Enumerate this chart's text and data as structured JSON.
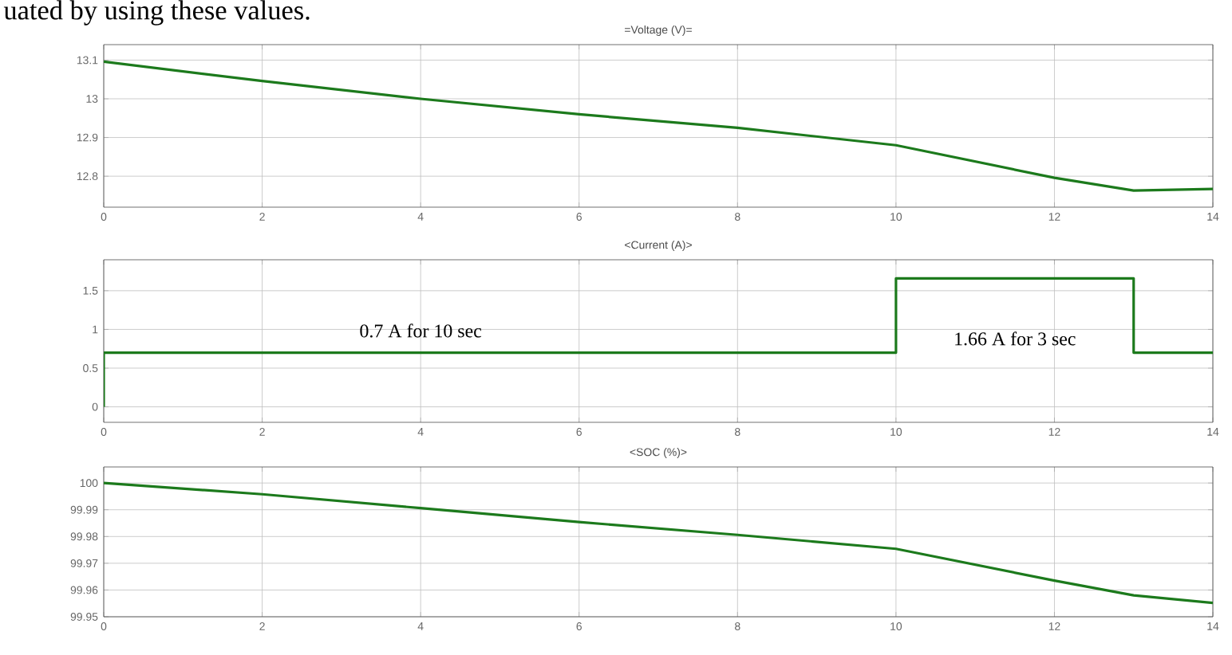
{
  "chart_data": [
    {
      "type": "line",
      "title": "=Voltage (V)=",
      "x": [
        0,
        2,
        4,
        6,
        8,
        10,
        12,
        13,
        14
      ],
      "series": [
        {
          "color": "#1c7a1c",
          "values": [
            13.096,
            13.046,
            13.0,
            12.96,
            12.925,
            12.88,
            12.796,
            12.763,
            12.767
          ]
        }
      ],
      "xlim": [
        0,
        14
      ],
      "xticks": [
        0,
        2,
        4,
        6,
        8,
        10,
        12,
        14
      ],
      "ylim": [
        12.72,
        13.14
      ],
      "yticks": [
        12.8,
        12.9,
        13,
        13.1
      ],
      "grid": true,
      "annotations": [
        "uated by using these values."
      ]
    },
    {
      "type": "line",
      "title": "<Current (A)>",
      "x": [
        0,
        0,
        10,
        10,
        13,
        13,
        14
      ],
      "series": [
        {
          "color": "#1c7a1c",
          "values": [
            0,
            0.7,
            0.7,
            1.66,
            1.66,
            0.7,
            0.7
          ]
        }
      ],
      "xlim": [
        0,
        14
      ],
      "xticks": [
        0,
        2,
        4,
        6,
        8,
        10,
        12,
        14
      ],
      "ylim": [
        -0.2,
        1.9
      ],
      "yticks": [
        0,
        0.5,
        1,
        1.5
      ],
      "grid": true,
      "annotations": [
        {
          "text": "0.7 A for 10 sec",
          "x": 4,
          "y": 0.7
        },
        {
          "text": "1.66 A for 3 sec",
          "x": 11.5,
          "y": 1.66
        }
      ]
    },
    {
      "type": "line",
      "title": "<SOC (%)>",
      "x": [
        0,
        2,
        4,
        6,
        8,
        10,
        12,
        13,
        14
      ],
      "series": [
        {
          "color": "#1c7a1c",
          "values": [
            100.0,
            99.9958,
            99.9906,
            99.9854,
            99.9806,
            99.9754,
            99.9635,
            99.958,
            99.9552
          ]
        }
      ],
      "xlim": [
        0,
        14
      ],
      "xticks": [
        0,
        2,
        4,
        6,
        8,
        10,
        12,
        14
      ],
      "ylim": [
        99.95,
        100.006
      ],
      "yticks": [
        99.95,
        99.96,
        99.97,
        99.98,
        99.99,
        100
      ],
      "grid": true
    }
  ]
}
